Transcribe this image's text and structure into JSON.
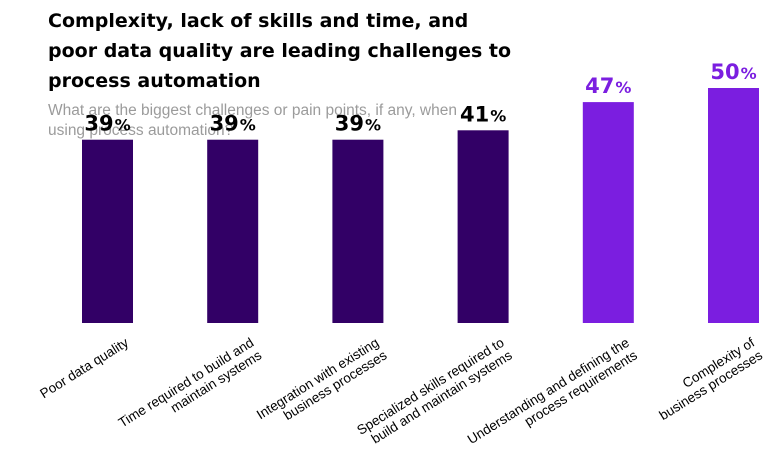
{
  "header": {
    "title": "Complexity, lack of skills and time, and poor data quality are leading challenges to process automation",
    "subtitle": "What are the biggest challenges or pain points, if any, when using process automation?"
  },
  "colors": {
    "dark_bar": "#320066",
    "highlight_bar": "#7b1ee0",
    "dark_label": "#000000",
    "highlight_label": "#7b1ee0"
  },
  "chart_data": {
    "type": "bar",
    "title": "Complexity, lack of skills and time, and poor data quality are leading challenges to process automation",
    "subtitle": "What are the biggest challenges or pain points, if any, when using process automation?",
    "categories": [
      "Poor data quality",
      "Time required to build and maintain systems",
      "Integration with existing business processes",
      "Specialized skills required to build and maintain systems",
      "Understanding and defining the process requirements",
      "Complexity of business processes"
    ],
    "category_lines": [
      [
        "Poor data quality"
      ],
      [
        "Time required to build and",
        "maintain systems"
      ],
      [
        "Integration with existing",
        "business processes"
      ],
      [
        "Specialized skills required to",
        "build and maintain systems"
      ],
      [
        "Understanding and defining the",
        "process requirements"
      ],
      [
        "Complexity of",
        "business processes"
      ]
    ],
    "values": [
      39,
      39,
      39,
      41,
      47,
      50
    ],
    "value_labels": [
      "39",
      "39",
      "39",
      "41",
      "47",
      "50"
    ],
    "unit": "%",
    "highlighted": [
      false,
      false,
      false,
      false,
      true,
      true
    ],
    "ylim": [
      0,
      50
    ],
    "grid": false,
    "legend": "none"
  }
}
